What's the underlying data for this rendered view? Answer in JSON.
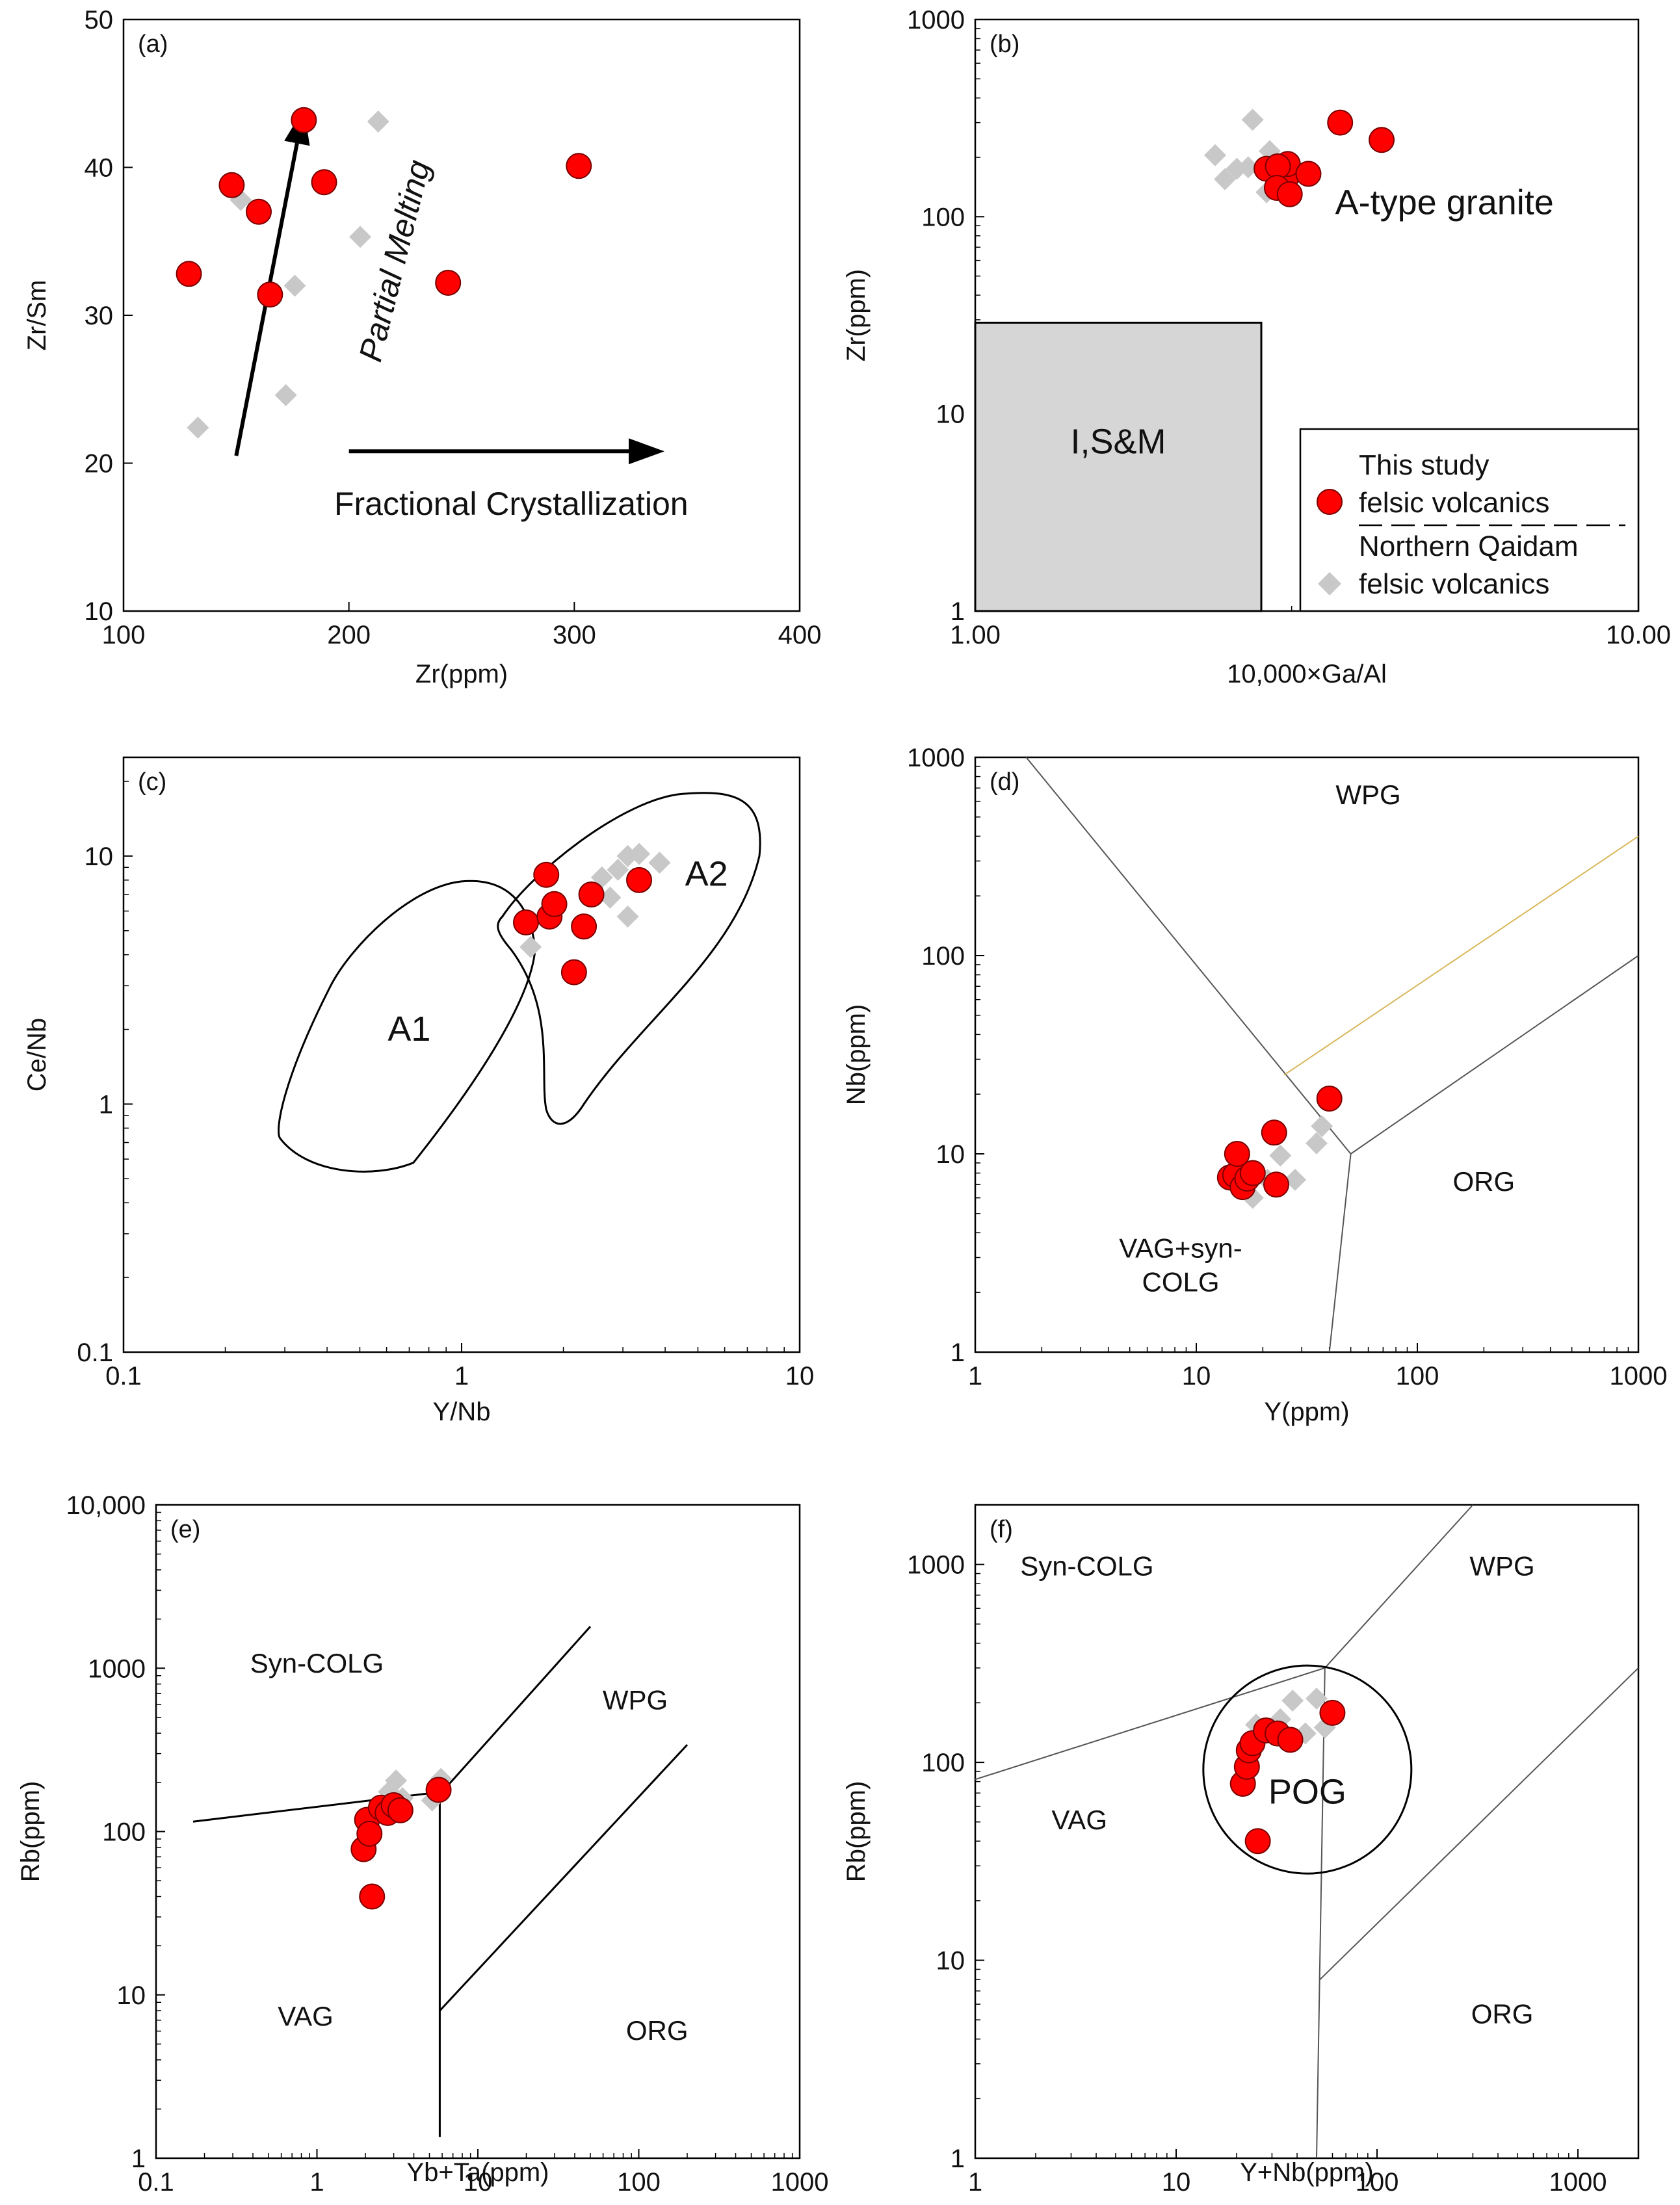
{
  "colors": {
    "this_study": "#ff0000",
    "northern_qaidam": "#c8c8c8",
    "field_fill": "#d6d6d6",
    "line": "#000000",
    "thin_line": "#555555",
    "yellow_line": "#d8b75a"
  },
  "legend": {
    "entries": [
      {
        "line1": "This study",
        "line2": "felsic volcanics"
      },
      {
        "line1": "Northern Qaidam",
        "line2": "felsic volcanics"
      }
    ]
  },
  "chart_data": [
    {
      "id": "a",
      "type": "scatter",
      "panel_label": "(a)",
      "xlabel": "Zr(ppm)",
      "ylabel": "Zr/Sm",
      "xscale": "linear",
      "yscale": "linear",
      "xlim": [
        100,
        400
      ],
      "ylim": [
        10,
        50
      ],
      "xticks": [
        "100",
        "200",
        "300",
        "400"
      ],
      "yticks": [
        "10",
        "20",
        "30",
        "40",
        "50"
      ],
      "series": [
        {
          "name": "This study",
          "marker": "circle",
          "x": [
            129,
            148,
            160,
            165,
            180,
            189,
            244,
            302
          ],
          "y": [
            32.8,
            38.8,
            37.0,
            31.4,
            43.2,
            39.0,
            32.2,
            40.1
          ]
        },
        {
          "name": "Northern Qaidam",
          "marker": "diamond",
          "x": [
            133,
            152,
            172,
            176,
            205,
            213
          ],
          "y": [
            22.4,
            37.8,
            24.6,
            32.0,
            35.3,
            43.1
          ]
        }
      ],
      "annotations": [
        {
          "text": "Partial Melting",
          "arrow_from": [
            150,
            20.5
          ],
          "arrow_to": [
            180,
            44
          ]
        },
        {
          "text": "Fractional Crystallization",
          "arrow_from": [
            200,
            20.8
          ],
          "arrow_to": [
            340,
            20.8
          ]
        }
      ]
    },
    {
      "id": "b",
      "type": "scatter",
      "panel_label": "(b)",
      "xlabel": "10,000×Ga/Al",
      "ylabel": "Zr(ppm)",
      "xscale": "log",
      "yscale": "log",
      "xlim": [
        1,
        10
      ],
      "ylim": [
        1,
        1000
      ],
      "xticks": [
        "1.00",
        "10.00"
      ],
      "yticks": [
        "1",
        "10",
        "100",
        "1000"
      ],
      "series": [
        {
          "name": "This study",
          "marker": "circle",
          "x": [
            2.75,
            2.95,
            2.96,
            2.86,
            2.85,
            2.98,
            3.18,
            3.55,
            4.1
          ],
          "y": [
            175,
            160,
            185,
            180,
            140,
            130,
            165,
            300,
            245
          ]
        },
        {
          "name": "Northern Qaidam",
          "marker": "diamond",
          "x": [
            2.3,
            2.38,
            2.48,
            2.58,
            2.62,
            2.75,
            2.78,
            2.88
          ],
          "y": [
            205,
            155,
            175,
            178,
            310,
            133,
            215,
            143
          ]
        }
      ],
      "fields": [
        {
          "label": "A-type granite"
        },
        {
          "label": "I,S&M",
          "x_range": [
            1,
            2.7
          ],
          "y_range": [
            1,
            29
          ]
        }
      ]
    },
    {
      "id": "c",
      "type": "scatter",
      "panel_label": "(c)",
      "xlabel": "Y/Nb",
      "ylabel": "Ce/Nb",
      "xscale": "log",
      "yscale": "log",
      "xlim": [
        0.1,
        10
      ],
      "ylim": [
        0.1,
        25
      ],
      "xticks": [
        "0.1",
        "1",
        "10"
      ],
      "yticks": [
        "0.1",
        "1",
        "10"
      ],
      "series": [
        {
          "name": "This study",
          "marker": "circle",
          "x": [
            1.55,
            1.78,
            1.82,
            1.88,
            2.15,
            2.3,
            2.42,
            3.35
          ],
          "y": [
            5.4,
            8.4,
            5.7,
            6.4,
            3.4,
            5.2,
            7.0,
            8.0
          ]
        },
        {
          "name": "Northern Qaidam",
          "marker": "diamond",
          "x": [
            1.6,
            2.6,
            2.75,
            2.9,
            3.1,
            3.35,
            3.85,
            3.1
          ],
          "y": [
            4.3,
            8.2,
            6.8,
            8.8,
            5.7,
            10.2,
            9.4,
            10.0
          ]
        }
      ],
      "fields": [
        {
          "label": "A1"
        },
        {
          "label": "A2"
        }
      ]
    },
    {
      "id": "d",
      "type": "scatter",
      "panel_label": "(d)",
      "xlabel": "Y(ppm)",
      "ylabel": "Nb(ppm)",
      "xscale": "log",
      "yscale": "log",
      "xlim": [
        1,
        1000
      ],
      "ylim": [
        1,
        1000
      ],
      "xticks": [
        "1",
        "10",
        "100",
        "1000"
      ],
      "yticks": [
        "1",
        "10",
        "100",
        "1000"
      ],
      "series": [
        {
          "name": "This study",
          "marker": "circle",
          "x": [
            14.2,
            15.0,
            15.3,
            16.2,
            17.0,
            18.0,
            22.5,
            23.0,
            40.0
          ],
          "y": [
            7.6,
            7.8,
            10.0,
            6.8,
            7.5,
            8.0,
            12.8,
            7.0,
            19.0
          ]
        },
        {
          "name": "Northern Qaidam",
          "marker": "diamond",
          "x": [
            18.0,
            21.0,
            24.0,
            28.0,
            35.0,
            37.0
          ],
          "y": [
            6.0,
            7.4,
            9.8,
            7.4,
            11.3,
            13.8
          ]
        }
      ],
      "fields": [
        {
          "label": "WPG"
        },
        {
          "label": "ORG"
        },
        {
          "label": "VAG+syn-COLG"
        }
      ]
    },
    {
      "id": "e",
      "type": "scatter",
      "panel_label": "(e)",
      "xlabel": "Yb+Ta(ppm)",
      "ylabel": "Rb(ppm)",
      "xscale": "log",
      "yscale": "log",
      "xlim": [
        0.1,
        1000
      ],
      "ylim": [
        1,
        10000
      ],
      "xticks": [
        "0.1",
        "1",
        "10",
        "100",
        "1000"
      ],
      "yticks": [
        "1",
        "10",
        "100",
        "1000",
        "10,000"
      ],
      "series": [
        {
          "name": "This study",
          "marker": "circle",
          "x": [
            1.95,
            2.05,
            2.12,
            2.2,
            2.5,
            2.75,
            3.0,
            3.3,
            5.7
          ],
          "y": [
            78,
            118,
            97,
            40,
            140,
            130,
            145,
            135,
            180
          ]
        },
        {
          "name": "Northern Qaidam",
          "marker": "diamond",
          "x": [
            2.4,
            2.8,
            3.1,
            3.4,
            5.2,
            5.9
          ],
          "y": [
            130,
            175,
            205,
            160,
            155,
            210
          ]
        }
      ],
      "fields": [
        {
          "label": "Syn-COLG"
        },
        {
          "label": "WPG"
        },
        {
          "label": "VAG"
        },
        {
          "label": "ORG"
        }
      ]
    },
    {
      "id": "f",
      "type": "scatter",
      "panel_label": "(f)",
      "xlabel": "Y+Nb(ppm)",
      "ylabel": "Rb(ppm)",
      "xscale": "log",
      "yscale": "log",
      "xlim": [
        1,
        2000
      ],
      "ylim": [
        1,
        2000
      ],
      "xticks": [
        "1",
        "10",
        "100",
        "1000"
      ],
      "yticks": [
        "1",
        "10",
        "100",
        "1000"
      ],
      "series": [
        {
          "name": "This study",
          "marker": "circle",
          "x": [
            21.5,
            22.5,
            23.0,
            24.0,
            25.5,
            28.0,
            32.0,
            37.0,
            60.0
          ],
          "y": [
            78,
            95,
            115,
            125,
            40,
            145,
            140,
            130,
            178
          ]
        },
        {
          "name": "Northern Qaidam",
          "marker": "diamond",
          "x": [
            25.0,
            30.0,
            33.0,
            38.0,
            44.0,
            50.0,
            55.0
          ],
          "y": [
            155,
            140,
            165,
            205,
            140,
            210,
            150
          ]
        }
      ],
      "fields": [
        {
          "label": "Syn-COLG"
        },
        {
          "label": "WPG"
        },
        {
          "label": "VAG"
        },
        {
          "label": "ORG"
        },
        {
          "label": "POG"
        }
      ]
    }
  ]
}
